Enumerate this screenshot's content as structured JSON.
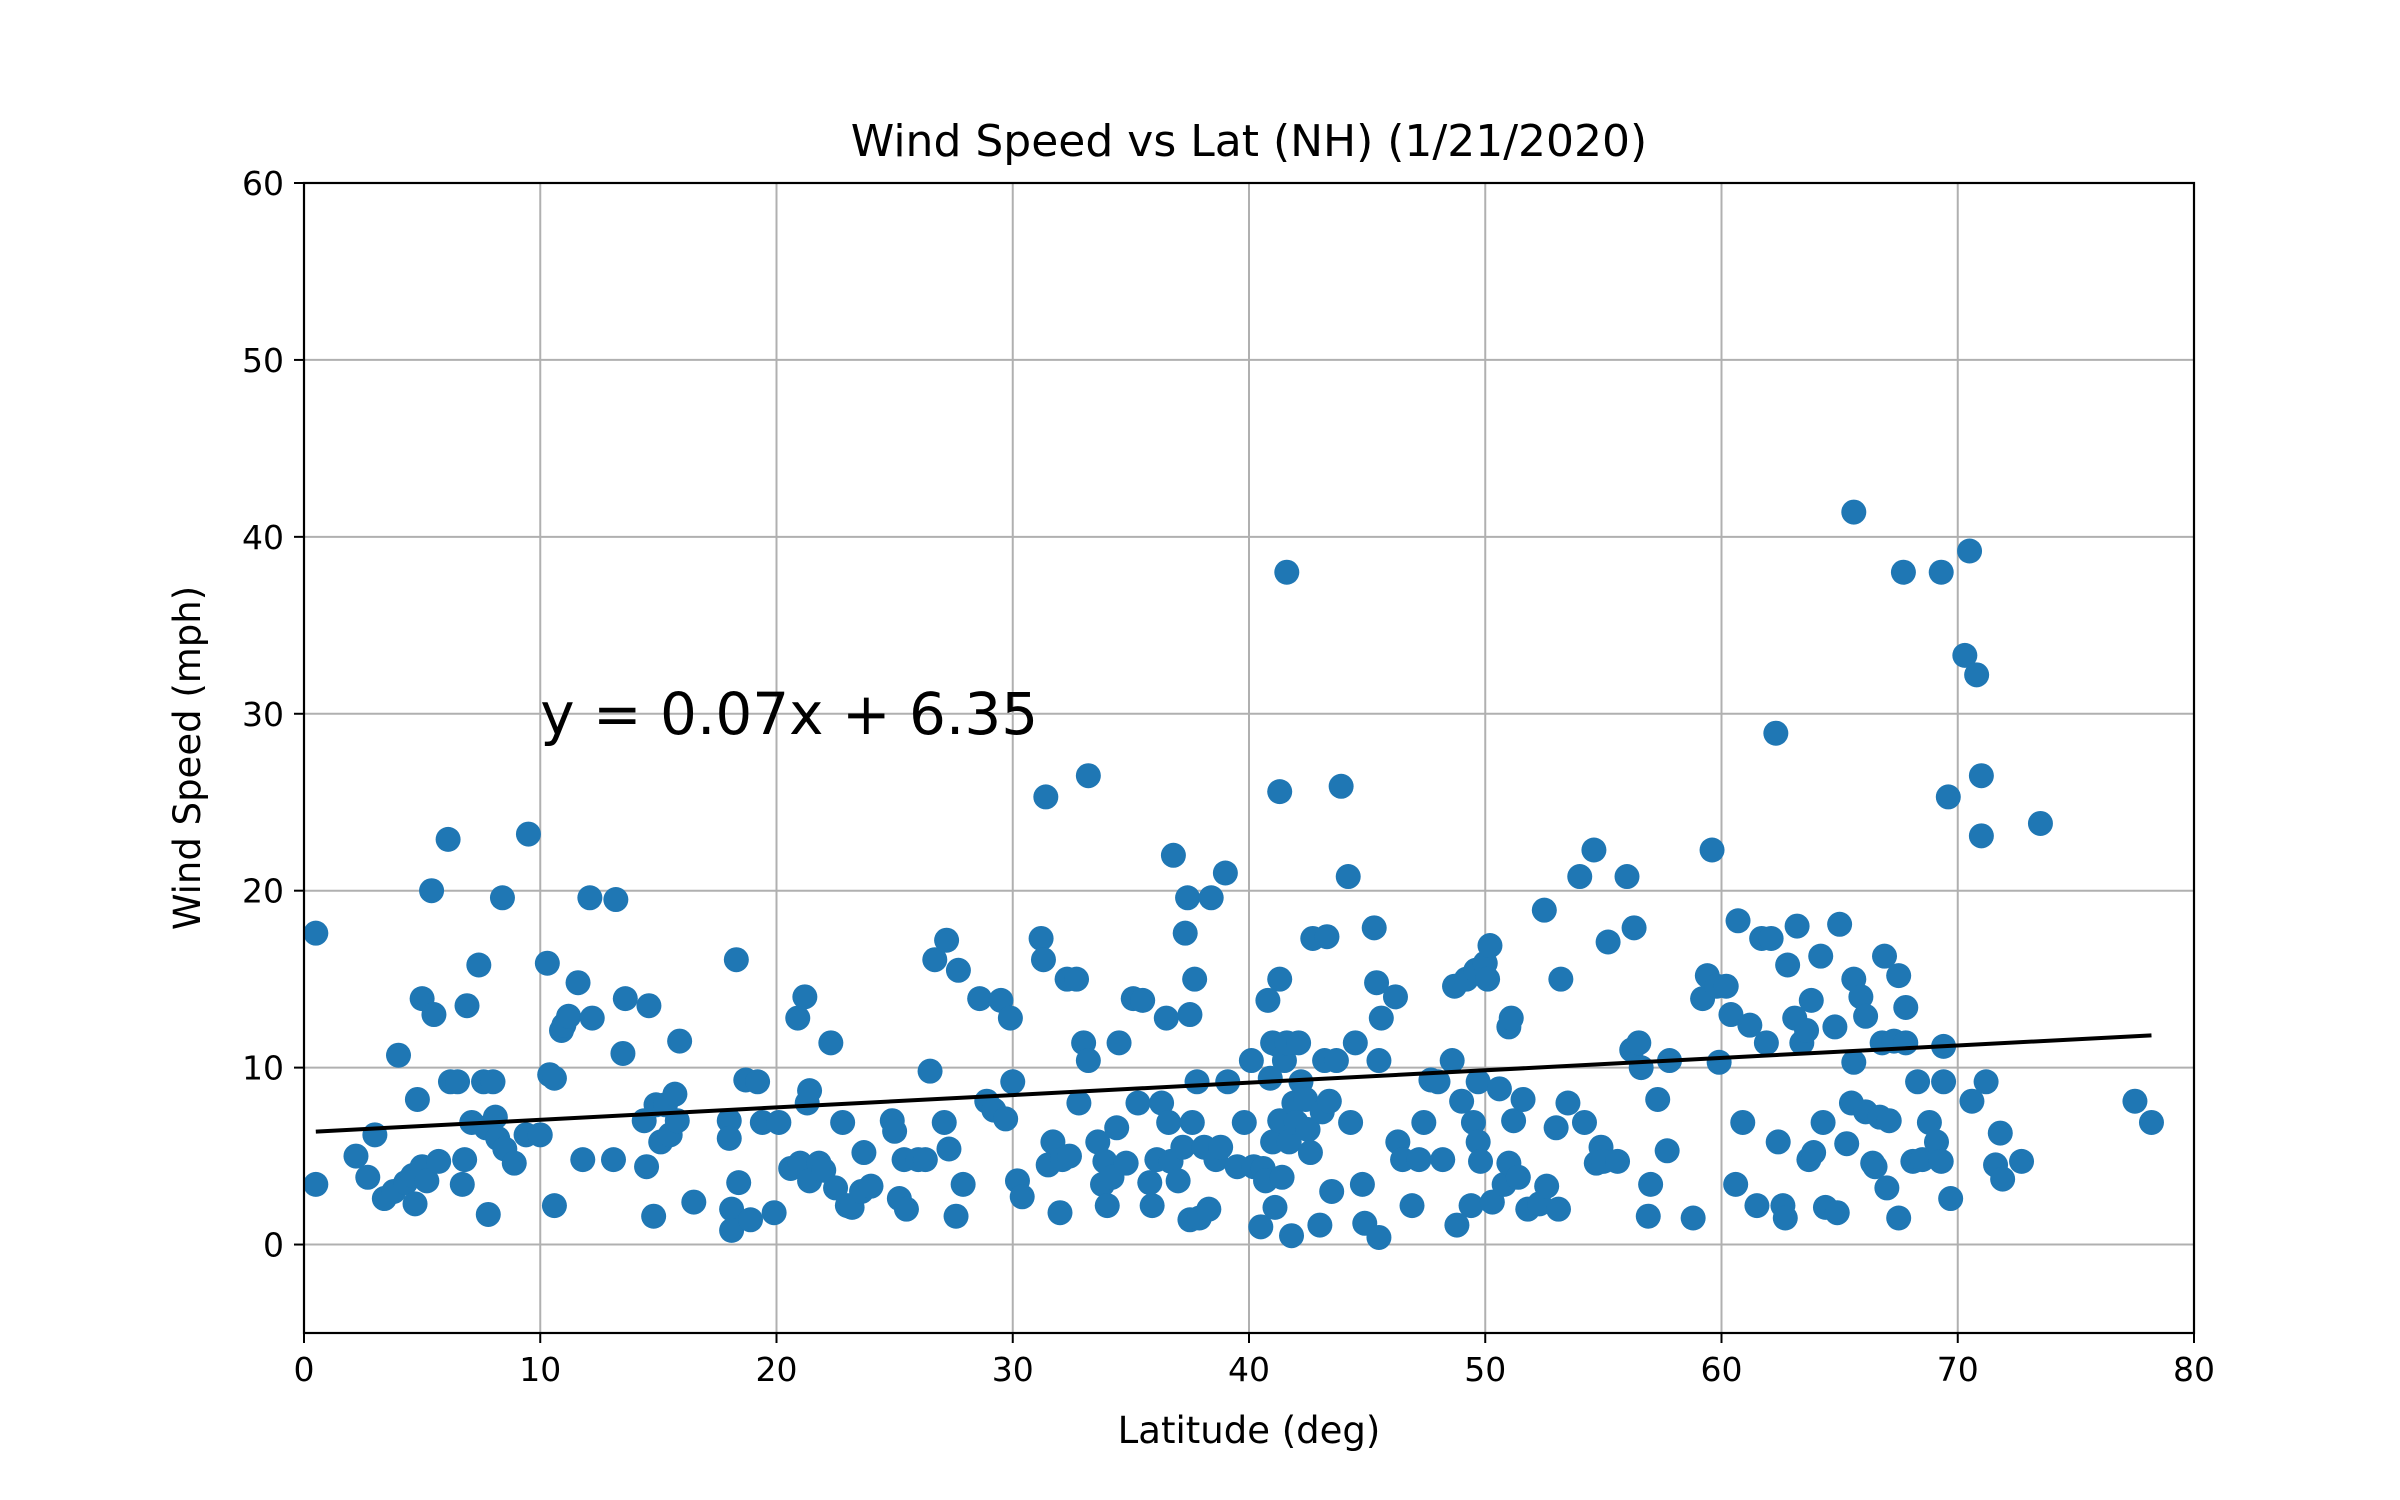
{
  "chart_data": {
    "type": "scatter",
    "title": "Wind Speed vs Lat (NH) (1/21/2020)",
    "xlabel": "Latitude (deg)",
    "ylabel": "Wind Speed (mph)",
    "xlim": [
      0,
      80
    ],
    "ylim": [
      -5,
      60
    ],
    "xticks": [
      0,
      10,
      20,
      30,
      40,
      50,
      60,
      70,
      80
    ],
    "yticks": [
      0,
      10,
      20,
      30,
      40,
      50,
      60
    ],
    "grid": true,
    "point_color": "#1f77b4",
    "line_color": "#000000",
    "regression": {
      "slope": 0.07,
      "intercept": 6.35,
      "x_start": 0.5,
      "x_end": 78.2
    },
    "annotation": {
      "text": "y = 0.07x + 6.35",
      "x": 10,
      "y": 30
    },
    "points": [
      [
        0.5,
        17.6
      ],
      [
        0.5,
        3.4
      ],
      [
        2.2,
        5.0
      ],
      [
        2.7,
        3.8
      ],
      [
        3.0,
        6.2
      ],
      [
        3.4,
        2.6
      ],
      [
        3.8,
        3.0
      ],
      [
        4.0,
        10.7
      ],
      [
        4.3,
        3.5
      ],
      [
        4.6,
        3.9
      ],
      [
        4.7,
        2.3
      ],
      [
        4.8,
        8.2
      ],
      [
        5.0,
        4.4
      ],
      [
        5.0,
        13.9
      ],
      [
        5.2,
        3.6
      ],
      [
        5.4,
        20.0
      ],
      [
        5.5,
        13.0
      ],
      [
        5.7,
        4.7
      ],
      [
        6.1,
        22.9
      ],
      [
        6.2,
        9.2
      ],
      [
        6.5,
        9.2
      ],
      [
        6.7,
        3.4
      ],
      [
        6.8,
        4.8
      ],
      [
        6.9,
        13.5
      ],
      [
        7.1,
        6.9
      ],
      [
        7.4,
        15.8
      ],
      [
        7.6,
        9.2
      ],
      [
        7.7,
        6.6
      ],
      [
        7.8,
        1.7
      ],
      [
        8.0,
        9.2
      ],
      [
        8.1,
        7.2
      ],
      [
        8.2,
        6.0
      ],
      [
        8.4,
        19.6
      ],
      [
        8.5,
        5.4
      ],
      [
        8.9,
        4.6
      ],
      [
        9.4,
        6.2
      ],
      [
        9.5,
        23.2
      ],
      [
        10.0,
        6.2
      ],
      [
        10.3,
        15.9
      ],
      [
        10.4,
        9.6
      ],
      [
        10.6,
        9.4
      ],
      [
        10.6,
        2.2
      ],
      [
        10.9,
        12.1
      ],
      [
        11.0,
        12.4
      ],
      [
        11.2,
        12.9
      ],
      [
        11.6,
        14.8
      ],
      [
        11.8,
        4.8
      ],
      [
        12.1,
        19.6
      ],
      [
        12.2,
        12.8
      ],
      [
        13.1,
        4.8
      ],
      [
        13.2,
        19.5
      ],
      [
        13.5,
        10.8
      ],
      [
        13.6,
        13.9
      ],
      [
        14.4,
        7.0
      ],
      [
        14.5,
        4.4
      ],
      [
        14.6,
        13.5
      ],
      [
        14.8,
        1.6
      ],
      [
        14.9,
        7.9
      ],
      [
        15.1,
        5.8
      ],
      [
        15.3,
        7.9
      ],
      [
        15.5,
        6.2
      ],
      [
        15.7,
        8.5
      ],
      [
        15.8,
        7.0
      ],
      [
        15.9,
        11.5
      ],
      [
        16.5,
        2.4
      ],
      [
        18.0,
        7.0
      ],
      [
        18.0,
        6.0
      ],
      [
        18.1,
        2.0
      ],
      [
        18.1,
        0.8
      ],
      [
        18.3,
        16.1
      ],
      [
        18.4,
        3.5
      ],
      [
        18.7,
        9.3
      ],
      [
        18.9,
        1.4
      ],
      [
        19.2,
        9.2
      ],
      [
        19.4,
        6.9
      ],
      [
        19.9,
        1.8
      ],
      [
        20.1,
        6.9
      ],
      [
        20.6,
        4.3
      ],
      [
        20.9,
        12.8
      ],
      [
        21.0,
        4.6
      ],
      [
        21.2,
        14.0
      ],
      [
        21.3,
        8.0
      ],
      [
        21.4,
        8.7
      ],
      [
        21.4,
        3.6
      ],
      [
        21.8,
        4.6
      ],
      [
        22.0,
        4.2
      ],
      [
        22.3,
        11.4
      ],
      [
        22.5,
        3.2
      ],
      [
        22.8,
        6.9
      ],
      [
        23.0,
        2.2
      ],
      [
        23.2,
        2.1
      ],
      [
        23.6,
        3.0
      ],
      [
        23.7,
        5.2
      ],
      [
        24.0,
        3.3
      ],
      [
        24.9,
        7.0
      ],
      [
        25.0,
        6.4
      ],
      [
        25.2,
        2.6
      ],
      [
        25.4,
        4.8
      ],
      [
        25.5,
        2.0
      ],
      [
        26.0,
        4.8
      ],
      [
        26.3,
        4.8
      ],
      [
        26.5,
        9.8
      ],
      [
        26.7,
        16.1
      ],
      [
        27.1,
        6.9
      ],
      [
        27.2,
        17.2
      ],
      [
        27.3,
        5.4
      ],
      [
        27.6,
        1.6
      ],
      [
        27.7,
        15.5
      ],
      [
        27.9,
        3.4
      ],
      [
        28.6,
        13.9
      ],
      [
        28.9,
        8.1
      ],
      [
        29.2,
        7.6
      ],
      [
        29.5,
        13.8
      ],
      [
        29.7,
        7.1
      ],
      [
        29.9,
        12.8
      ],
      [
        30.0,
        9.2
      ],
      [
        30.2,
        3.6
      ],
      [
        30.4,
        2.7
      ],
      [
        31.2,
        17.3
      ],
      [
        31.3,
        16.1
      ],
      [
        31.4,
        25.3
      ],
      [
        31.5,
        4.5
      ],
      [
        31.7,
        5.8
      ],
      [
        32.0,
        1.8
      ],
      [
        32.1,
        4.8
      ],
      [
        32.3,
        15.0
      ],
      [
        32.4,
        5.0
      ],
      [
        32.7,
        15.0
      ],
      [
        32.8,
        8.0
      ],
      [
        33.0,
        11.4
      ],
      [
        33.2,
        10.4
      ],
      [
        33.2,
        26.5
      ],
      [
        33.6,
        5.8
      ],
      [
        33.8,
        3.4
      ],
      [
        33.9,
        4.7
      ],
      [
        34.0,
        2.2
      ],
      [
        34.2,
        3.8
      ],
      [
        34.4,
        6.6
      ],
      [
        34.5,
        11.4
      ],
      [
        34.8,
        4.6
      ],
      [
        35.1,
        13.9
      ],
      [
        35.3,
        8.0
      ],
      [
        35.5,
        13.8
      ],
      [
        35.8,
        3.5
      ],
      [
        35.9,
        2.2
      ],
      [
        36.1,
        4.8
      ],
      [
        36.3,
        8.0
      ],
      [
        36.5,
        12.8
      ],
      [
        36.6,
        6.9
      ],
      [
        36.7,
        4.7
      ],
      [
        36.8,
        22.0
      ],
      [
        37.0,
        3.6
      ],
      [
        37.2,
        5.5
      ],
      [
        37.3,
        17.6
      ],
      [
        37.4,
        19.6
      ],
      [
        37.5,
        13.0
      ],
      [
        37.5,
        1.4
      ],
      [
        37.6,
        6.9
      ],
      [
        37.7,
        15.0
      ],
      [
        37.8,
        9.2
      ],
      [
        37.9,
        1.5
      ],
      [
        38.1,
        5.5
      ],
      [
        38.3,
        2.0
      ],
      [
        38.4,
        19.6
      ],
      [
        38.6,
        4.8
      ],
      [
        38.8,
        5.5
      ],
      [
        39.0,
        21.0
      ],
      [
        39.1,
        9.2
      ],
      [
        39.5,
        4.4
      ],
      [
        39.8,
        6.9
      ],
      [
        40.1,
        10.4
      ],
      [
        40.2,
        4.4
      ],
      [
        40.5,
        1.0
      ],
      [
        40.6,
        4.3
      ],
      [
        40.7,
        3.6
      ],
      [
        40.8,
        13.8
      ],
      [
        40.9,
        9.4
      ],
      [
        41.0,
        11.4
      ],
      [
        41.0,
        5.8
      ],
      [
        41.1,
        2.1
      ],
      [
        41.2,
        11.3
      ],
      [
        41.3,
        7.0
      ],
      [
        41.3,
        15.0
      ],
      [
        41.3,
        25.6
      ],
      [
        41.4,
        3.8
      ],
      [
        41.5,
        10.4
      ],
      [
        41.6,
        11.4
      ],
      [
        41.6,
        38.0
      ],
      [
        41.7,
        5.8
      ],
      [
        41.8,
        0.5
      ],
      [
        41.9,
        8.0
      ],
      [
        42.0,
        6.9
      ],
      [
        42.1,
        11.4
      ],
      [
        42.2,
        9.2
      ],
      [
        42.4,
        8.2
      ],
      [
        42.5,
        6.5
      ],
      [
        42.6,
        5.2
      ],
      [
        42.7,
        17.3
      ],
      [
        43.0,
        1.1
      ],
      [
        43.1,
        7.5
      ],
      [
        43.2,
        10.4
      ],
      [
        43.3,
        17.4
      ],
      [
        43.4,
        8.1
      ],
      [
        43.5,
        3.0
      ],
      [
        43.7,
        10.4
      ],
      [
        43.9,
        25.9
      ],
      [
        44.2,
        20.8
      ],
      [
        44.3,
        6.9
      ],
      [
        44.5,
        11.4
      ],
      [
        44.8,
        3.4
      ],
      [
        44.9,
        1.2
      ],
      [
        45.3,
        17.9
      ],
      [
        45.4,
        14.8
      ],
      [
        45.5,
        0.4
      ],
      [
        45.5,
        10.4
      ],
      [
        45.6,
        12.8
      ],
      [
        46.2,
        14.0
      ],
      [
        46.3,
        5.8
      ],
      [
        46.5,
        4.8
      ],
      [
        46.9,
        2.2
      ],
      [
        47.2,
        4.8
      ],
      [
        47.4,
        6.9
      ],
      [
        47.7,
        9.3
      ],
      [
        48.0,
        9.2
      ],
      [
        48.2,
        4.8
      ],
      [
        48.6,
        10.4
      ],
      [
        48.7,
        14.6
      ],
      [
        48.8,
        1.1
      ],
      [
        49.0,
        8.1
      ],
      [
        49.2,
        15.0
      ],
      [
        49.4,
        2.2
      ],
      [
        49.5,
        6.9
      ],
      [
        49.6,
        15.5
      ],
      [
        49.7,
        5.8
      ],
      [
        49.7,
        9.2
      ],
      [
        49.8,
        4.7
      ],
      [
        50.0,
        15.9
      ],
      [
        50.1,
        15.0
      ],
      [
        50.2,
        16.9
      ],
      [
        50.3,
        2.4
      ],
      [
        50.6,
        8.8
      ],
      [
        50.8,
        3.4
      ],
      [
        51.0,
        4.6
      ],
      [
        51.0,
        12.3
      ],
      [
        51.1,
        12.8
      ],
      [
        51.2,
        7.0
      ],
      [
        51.4,
        3.8
      ],
      [
        51.6,
        8.2
      ],
      [
        51.8,
        2.0
      ],
      [
        52.3,
        2.3
      ],
      [
        52.5,
        18.9
      ],
      [
        52.6,
        3.3
      ],
      [
        53.0,
        6.6
      ],
      [
        53.1,
        2.0
      ],
      [
        53.2,
        15.0
      ],
      [
        53.5,
        8.0
      ],
      [
        54.0,
        20.8
      ],
      [
        54.2,
        6.9
      ],
      [
        54.6,
        22.3
      ],
      [
        54.7,
        4.6
      ],
      [
        54.9,
        5.5
      ],
      [
        55.0,
        4.7
      ],
      [
        55.2,
        17.1
      ],
      [
        55.6,
        4.7
      ],
      [
        56.0,
        20.8
      ],
      [
        56.2,
        11.0
      ],
      [
        56.3,
        17.9
      ],
      [
        56.5,
        11.4
      ],
      [
        56.6,
        10.0
      ],
      [
        56.9,
        1.6
      ],
      [
        57.0,
        3.4
      ],
      [
        57.3,
        8.2
      ],
      [
        57.7,
        5.3
      ],
      [
        57.8,
        10.4
      ],
      [
        58.8,
        1.5
      ],
      [
        59.2,
        13.9
      ],
      [
        59.4,
        15.2
      ],
      [
        59.6,
        22.3
      ],
      [
        59.8,
        14.6
      ],
      [
        59.9,
        10.3
      ],
      [
        60.2,
        14.6
      ],
      [
        60.4,
        13.0
      ],
      [
        60.6,
        3.4
      ],
      [
        60.7,
        18.3
      ],
      [
        60.9,
        6.9
      ],
      [
        61.2,
        12.4
      ],
      [
        61.5,
        2.2
      ],
      [
        61.7,
        17.3
      ],
      [
        61.9,
        11.4
      ],
      [
        62.1,
        17.3
      ],
      [
        62.3,
        28.9
      ],
      [
        62.4,
        5.8
      ],
      [
        62.6,
        2.2
      ],
      [
        62.7,
        1.5
      ],
      [
        62.8,
        15.8
      ],
      [
        63.1,
        12.8
      ],
      [
        63.2,
        18.0
      ],
      [
        63.4,
        11.4
      ],
      [
        63.6,
        12.1
      ],
      [
        63.7,
        4.8
      ],
      [
        63.8,
        13.8
      ],
      [
        63.9,
        5.2
      ],
      [
        64.2,
        16.3
      ],
      [
        64.3,
        6.9
      ],
      [
        64.4,
        2.1
      ],
      [
        64.8,
        12.3
      ],
      [
        64.9,
        1.8
      ],
      [
        65.0,
        18.1
      ],
      [
        65.3,
        5.7
      ],
      [
        65.5,
        8.0
      ],
      [
        65.6,
        10.3
      ],
      [
        65.6,
        15.0
      ],
      [
        65.6,
        41.4
      ],
      [
        65.9,
        14.0
      ],
      [
        66.1,
        7.5
      ],
      [
        66.1,
        12.9
      ],
      [
        66.4,
        4.6
      ],
      [
        66.5,
        4.4
      ],
      [
        66.7,
        7.2
      ],
      [
        66.8,
        11.4
      ],
      [
        66.9,
        16.3
      ],
      [
        67.0,
        3.2
      ],
      [
        67.1,
        7.0
      ],
      [
        67.3,
        11.5
      ],
      [
        67.5,
        15.2
      ],
      [
        67.5,
        1.5
      ],
      [
        67.7,
        38.0
      ],
      [
        67.8,
        13.4
      ],
      [
        67.8,
        11.4
      ],
      [
        68.1,
        4.7
      ],
      [
        68.3,
        9.2
      ],
      [
        68.5,
        4.8
      ],
      [
        68.8,
        6.9
      ],
      [
        69.1,
        5.8
      ],
      [
        69.3,
        4.7
      ],
      [
        69.3,
        38.0
      ],
      [
        69.4,
        9.2
      ],
      [
        69.4,
        11.2
      ],
      [
        69.6,
        25.3
      ],
      [
        69.7,
        2.6
      ],
      [
        70.3,
        33.3
      ],
      [
        70.5,
        39.2
      ],
      [
        70.6,
        8.1
      ],
      [
        70.8,
        32.2
      ],
      [
        71.0,
        26.5
      ],
      [
        71.0,
        23.1
      ],
      [
        71.2,
        9.2
      ],
      [
        71.6,
        4.5
      ],
      [
        71.8,
        6.3
      ],
      [
        71.9,
        3.7
      ],
      [
        72.7,
        4.7
      ],
      [
        73.5,
        23.8
      ],
      [
        77.5,
        8.1
      ],
      [
        78.2,
        6.9
      ]
    ]
  }
}
